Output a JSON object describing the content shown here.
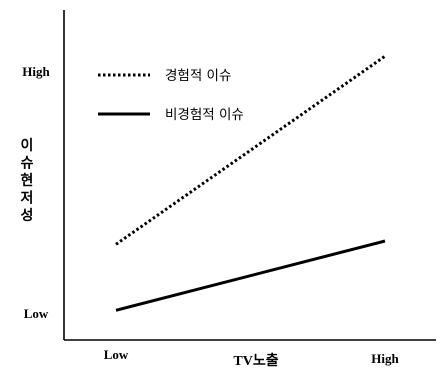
{
  "chart_data": {
    "type": "line",
    "x": [
      "Low",
      "High"
    ],
    "xlabel": "TV노출",
    "ylabel": "이슈현저성",
    "y_ticks": [
      "Low",
      "High"
    ],
    "ylim": [
      0,
      1
    ],
    "grid": false,
    "legend": "top-left",
    "series": [
      {
        "name": "경험적 이슈",
        "style": "dotted",
        "color": "#000000",
        "values": [
          0.29,
          0.86
        ]
      },
      {
        "name": "비경험적 이슈",
        "style": "solid",
        "color": "#000000",
        "values": [
          0.09,
          0.3
        ]
      }
    ]
  }
}
